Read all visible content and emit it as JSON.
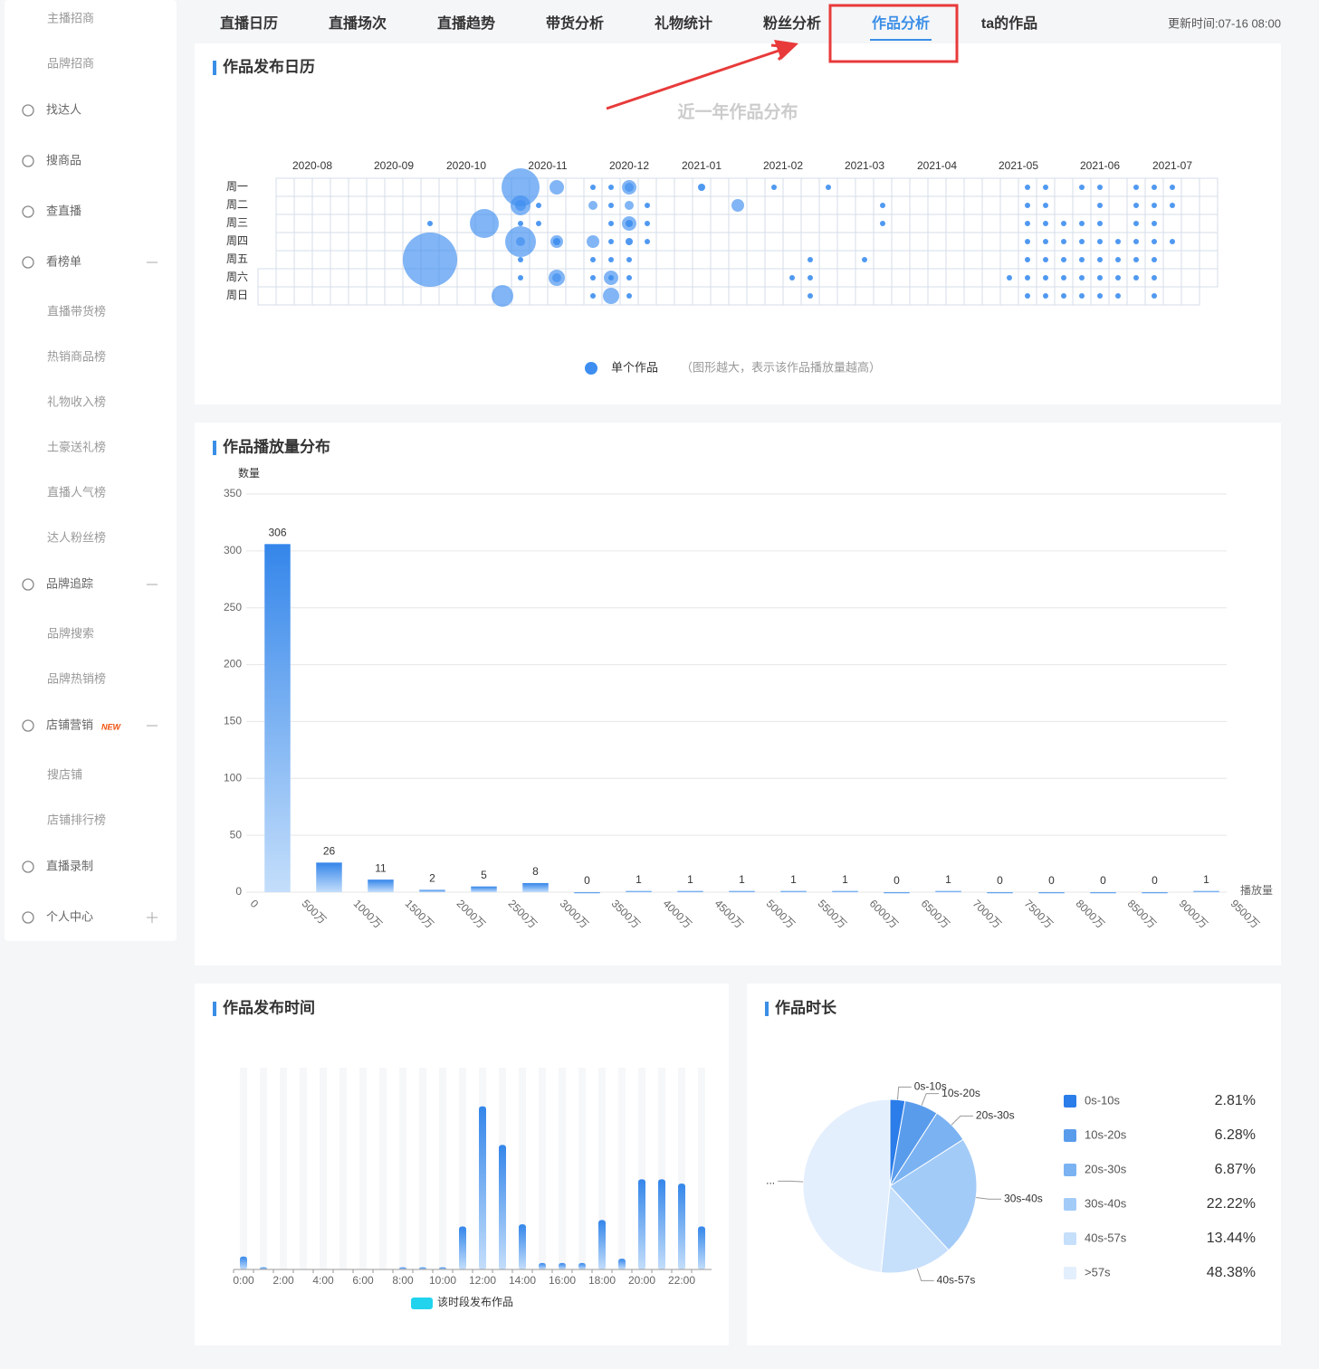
{
  "sidebar": {
    "items": [
      "主播招商",
      "品牌招商",
      "找达人",
      "搜商品",
      "查直播",
      "看榜单",
      "直播带货榜",
      "热销商品榜",
      "礼物收入榜",
      "土豪送礼榜",
      "直播人气榜",
      "达人粉丝榜",
      "品牌追踪",
      "品牌搜索",
      "品牌热销榜",
      "店铺营销",
      "搜店铺",
      "店铺排行榜",
      "直播录制",
      "个人中心"
    ],
    "badge": "NEW"
  },
  "tabs": {
    "items": [
      "直播日历",
      "直播场次",
      "直播趋势",
      "带货分析",
      "礼物统计",
      "粉丝分析",
      "作品分析",
      "ta的作品"
    ],
    "active": 6,
    "update_time": "更新时间:07-16 08:00"
  },
  "chart_data": [
    {
      "type": "calendar",
      "title": "作品发布日历",
      "subtitle": "近一年作品分布",
      "months": [
        "2020-08",
        "2020-09",
        "2020-10",
        "2020-11",
        "2020-12",
        "2021-01",
        "2021-02",
        "2021-03",
        "2021-04",
        "2021-05",
        "2021-06",
        "2021-07"
      ],
      "weekdays": [
        "周一",
        "周二",
        "周三",
        "周四",
        "周五",
        "周六",
        "周日"
      ],
      "color": "#3d8ef0",
      "legend": "单个作品",
      "note": "（图形越大，表示该作品播放量越高）",
      "points": [
        [
          9,
          4,
          30
        ],
        [
          9,
          2,
          3
        ],
        [
          12,
          2,
          16
        ],
        [
          13,
          6,
          12
        ],
        [
          14,
          0,
          21
        ],
        [
          14,
          1,
          11
        ],
        [
          14,
          1,
          6
        ],
        [
          14,
          2,
          3
        ],
        [
          14,
          3,
          17
        ],
        [
          14,
          3,
          5
        ],
        [
          14,
          4,
          3
        ],
        [
          14,
          5,
          3
        ],
        [
          15,
          1,
          3
        ],
        [
          15,
          2,
          3
        ],
        [
          16,
          0,
          8
        ],
        [
          16,
          3,
          7
        ],
        [
          16,
          3,
          4
        ],
        [
          16,
          5,
          9
        ],
        [
          16,
          5,
          5
        ],
        [
          18,
          0,
          3
        ],
        [
          18,
          1,
          5
        ],
        [
          18,
          3,
          7
        ],
        [
          18,
          4,
          3
        ],
        [
          18,
          5,
          3
        ],
        [
          18,
          6,
          3
        ],
        [
          19,
          0,
          3
        ],
        [
          19,
          1,
          3
        ],
        [
          19,
          2,
          3
        ],
        [
          19,
          3,
          3
        ],
        [
          19,
          4,
          3
        ],
        [
          19,
          5,
          8
        ],
        [
          19,
          5,
          3
        ],
        [
          19,
          6,
          9
        ],
        [
          20,
          0,
          8
        ],
        [
          20,
          0,
          5
        ],
        [
          20,
          1,
          5
        ],
        [
          20,
          2,
          8
        ],
        [
          20,
          2,
          4
        ],
        [
          20,
          3,
          4
        ],
        [
          20,
          4,
          3
        ],
        [
          20,
          5,
          3
        ],
        [
          20,
          6,
          3
        ],
        [
          21,
          1,
          3
        ],
        [
          21,
          2,
          3
        ],
        [
          21,
          3,
          3
        ],
        [
          24,
          0,
          4
        ],
        [
          26,
          1,
          7
        ],
        [
          28,
          0,
          3
        ],
        [
          29,
          5,
          3
        ],
        [
          30,
          4,
          3
        ],
        [
          30,
          5,
          3
        ],
        [
          30,
          6,
          3
        ],
        [
          31,
          0,
          3
        ],
        [
          33,
          4,
          3
        ],
        [
          34,
          1,
          3
        ],
        [
          34,
          2,
          3
        ],
        [
          41,
          5,
          3
        ],
        [
          42,
          0,
          3
        ],
        [
          42,
          1,
          3
        ],
        [
          42,
          2,
          3
        ],
        [
          42,
          3,
          3
        ],
        [
          42,
          4,
          3
        ],
        [
          42,
          5,
          3
        ],
        [
          42,
          6,
          3
        ],
        [
          43,
          0,
          3
        ],
        [
          43,
          1,
          3
        ],
        [
          43,
          2,
          3
        ],
        [
          43,
          3,
          3
        ],
        [
          43,
          4,
          3
        ],
        [
          43,
          5,
          3
        ],
        [
          43,
          6,
          3
        ],
        [
          44,
          2,
          3
        ],
        [
          44,
          3,
          3
        ],
        [
          44,
          4,
          3
        ],
        [
          44,
          5,
          3
        ],
        [
          44,
          6,
          3
        ],
        [
          45,
          0,
          3
        ],
        [
          45,
          2,
          3
        ],
        [
          45,
          3,
          3
        ],
        [
          45,
          4,
          3
        ],
        [
          45,
          5,
          3
        ],
        [
          45,
          6,
          3
        ],
        [
          46,
          0,
          3
        ],
        [
          46,
          1,
          3
        ],
        [
          46,
          2,
          3
        ],
        [
          46,
          3,
          3
        ],
        [
          46,
          4,
          3
        ],
        [
          46,
          5,
          3
        ],
        [
          46,
          6,
          3
        ],
        [
          47,
          3,
          3
        ],
        [
          47,
          4,
          3
        ],
        [
          47,
          5,
          3
        ],
        [
          47,
          6,
          3
        ],
        [
          48,
          0,
          3
        ],
        [
          48,
          1,
          3
        ],
        [
          48,
          2,
          3
        ],
        [
          48,
          3,
          3
        ],
        [
          48,
          4,
          3
        ],
        [
          48,
          5,
          3
        ],
        [
          49,
          0,
          3
        ],
        [
          49,
          1,
          3
        ],
        [
          49,
          2,
          3
        ],
        [
          49,
          3,
          3
        ],
        [
          49,
          4,
          3
        ],
        [
          49,
          5,
          3
        ],
        [
          49,
          6,
          3
        ],
        [
          50,
          0,
          3
        ],
        [
          50,
          1,
          3
        ],
        [
          50,
          3,
          3
        ]
      ]
    },
    {
      "type": "histogram",
      "title": "作品播放量分布",
      "y_label": "数量",
      "x_label": "播放量",
      "bins": [
        0,
        {
          "value": 5000000,
          "label": "500万"
        },
        {
          "value": 10000000,
          "label": "1000万"
        },
        {
          "value": 15000000,
          "label": "1500万"
        },
        {
          "value": 20000000,
          "label": "2000万"
        },
        {
          "value": 25000000,
          "label": "2500万"
        },
        {
          "value": 30000000,
          "label": "3000万"
        },
        {
          "value": 35000000,
          "label": "3500万"
        },
        {
          "value": 40000000,
          "label": "4000万"
        },
        {
          "value": 45000000,
          "label": "4500万"
        },
        {
          "value": 50000000,
          "label": "5000万"
        },
        {
          "value": 55000000,
          "label": "5500万"
        },
        {
          "value": 60000000,
          "label": "6000万"
        },
        {
          "value": 65000000,
          "label": "6500万"
        },
        {
          "value": 70000000,
          "label": "7000万"
        },
        {
          "value": 75000000,
          "label": "7500万"
        },
        {
          "value": 80000000,
          "label": "8000万"
        },
        {
          "value": 85000000,
          "label": "8500万"
        },
        {
          "value": 90000000,
          "label": "9000万"
        },
        {
          "value": 95000000,
          "label": "9500万"
        }
      ],
      "values": [
        306,
        26,
        11,
        2,
        5,
        8,
        0,
        1,
        1,
        1,
        1,
        1,
        0,
        1,
        0,
        0,
        0,
        0,
        1
      ],
      "xlim": [
        0,
        95000000
      ],
      "ylim": [
        0,
        350
      ],
      "yticks": [
        0,
        50,
        100,
        150,
        200,
        250,
        300,
        350
      ],
      "grid": true
    },
    {
      "type": "bar",
      "title": "作品发布时间",
      "categories": [
        "0:00",
        null,
        "2:00",
        null,
        "4:00",
        null,
        "6:00",
        null,
        "8:00",
        null,
        "10:00",
        null,
        "12:00",
        null,
        "14:00",
        null,
        "16:00",
        null,
        "18:00",
        null,
        "20:00",
        null,
        "22:00",
        null
      ],
      "values": [
        6,
        1,
        0,
        0,
        0,
        0,
        0,
        0,
        1,
        1,
        1,
        20,
        76,
        58,
        21,
        3,
        3,
        3,
        23,
        5,
        42,
        42,
        40,
        20
      ],
      "ylim": [
        0,
        94
      ],
      "legend": "该时段发布作品",
      "legend_color": "#22d3ee"
    },
    {
      "type": "pie",
      "title": "作品时长",
      "categories": [
        "0s-10s",
        "10s-20s",
        "20s-30s",
        "30s-40s",
        "40s-57s",
        ">57s"
      ],
      "values": [
        2.81,
        6.28,
        6.87,
        22.22,
        13.44,
        48.38
      ],
      "value_labels": [
        "2.81%",
        "6.28%",
        "6.87%",
        "22.22%",
        "13.44%",
        "48.38%"
      ],
      "outer_labels": [
        "0s-10s",
        "10s-20s",
        "20s-30s",
        "30s-40s",
        "40s-57s",
        "..."
      ],
      "colors": [
        "#2b7de9",
        "#5a9cec",
        "#7ab2f2",
        "#a3cbf8",
        "#c6dffb",
        "#e4effd"
      ]
    }
  ]
}
